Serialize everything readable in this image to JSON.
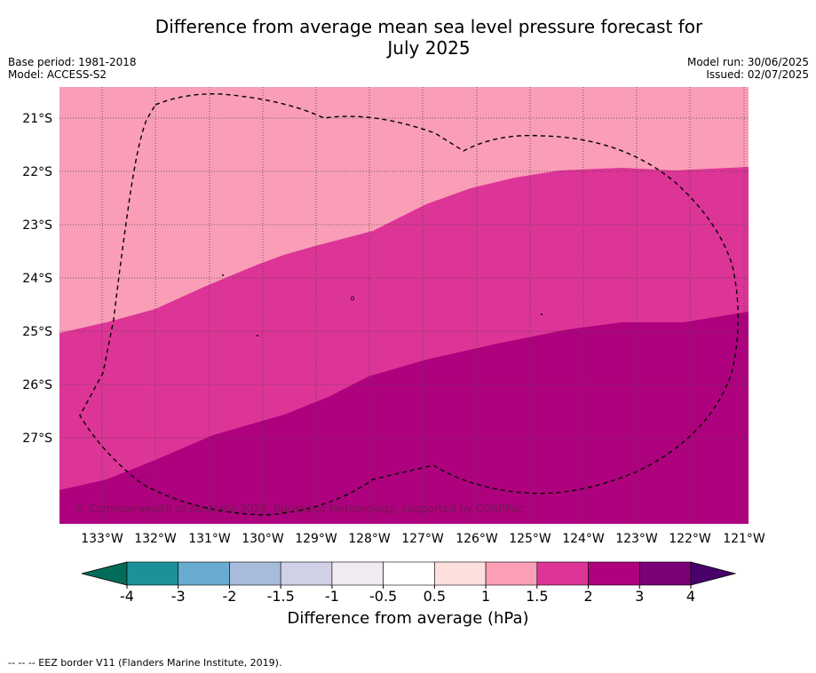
{
  "header": {
    "title_line1": "Difference from average mean sea level pressure forecast for",
    "title_line2": "July 2025",
    "base_period": "Base period: 1981-2018",
    "model": "Model: ACCESS-S2",
    "model_run": "Model run: 30/06/2025",
    "issued": "Issued: 02/07/2025"
  },
  "map": {
    "copyright": "© Commonwealth of Australia 2025, Bureau of Meteorology, supported by COSPPac",
    "lat_labels": [
      "21°S",
      "22°S",
      "23°S",
      "24°S",
      "25°S",
      "26°S",
      "27°S"
    ],
    "lon_labels": [
      "133°W",
      "132°W",
      "131°W",
      "130°W",
      "129°W",
      "128°W",
      "127°W",
      "126°W",
      "125°W",
      "124°W",
      "123°W",
      "122°W",
      "121°W"
    ],
    "fill_colors": {
      "band_1_1_5": "#f99eb6",
      "band_1_5_2": "#dd3497",
      "band_2_3": "#ae017e"
    }
  },
  "colorbar": {
    "ticks": [
      "-4",
      "-3",
      "-2",
      "-1.5",
      "-1",
      "-0.5",
      "0.5",
      "1",
      "1.5",
      "2",
      "3",
      "4"
    ],
    "colors": [
      "#1a9298",
      "#67abd0",
      "#a7bbda",
      "#d0d1e6",
      "#f0eaf2",
      "#ffffff",
      "#fde0dd",
      "#fa9fb5",
      "#dd3497",
      "#ae017e",
      "#7a0177"
    ],
    "under_color": "#016c59",
    "over_color": "#49006a",
    "label": "Difference from average (hPa)"
  },
  "footer": {
    "eez_note": "--  --  -- EEZ border V11 (Flanders Marine Institute, 2019)."
  }
}
